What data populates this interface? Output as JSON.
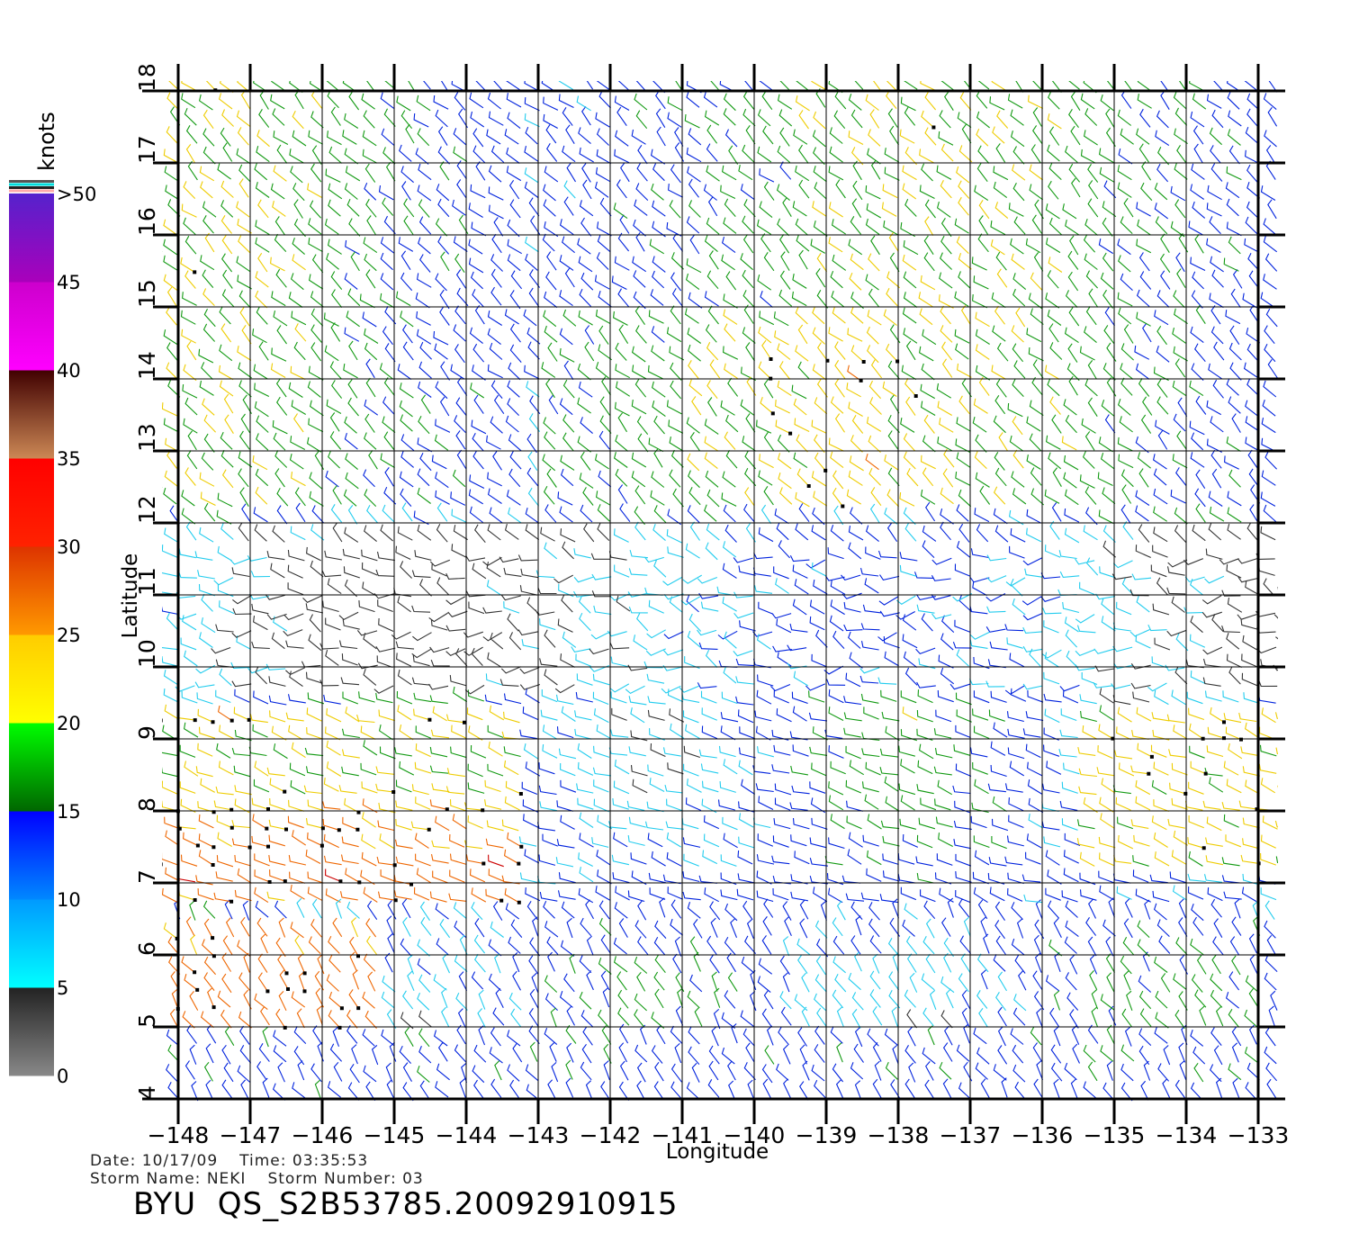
{
  "colorbar": {
    "unit": "knots",
    "labels": [
      "0",
      "5",
      "10",
      "15",
      "20",
      "25",
      "30",
      "35",
      "40",
      "45",
      ">50"
    ],
    "segments": [
      {
        "from": 0,
        "to": 5,
        "colors": [
          "#888888",
          "#222222"
        ]
      },
      {
        "from": 5,
        "to": 10,
        "colors": [
          "#00ffff",
          "#0099ff"
        ]
      },
      {
        "from": 10,
        "to": 15,
        "colors": [
          "#0088ff",
          "#0000ff"
        ]
      },
      {
        "from": 15,
        "to": 20,
        "colors": [
          "#006600",
          "#00ff00"
        ]
      },
      {
        "from": 20,
        "to": 25,
        "colors": [
          "#ffff00",
          "#ffcc00"
        ]
      },
      {
        "from": 25,
        "to": 30,
        "colors": [
          "#ff9900",
          "#dd3300"
        ]
      },
      {
        "from": 30,
        "to": 35,
        "colors": [
          "#ff2200",
          "#ff0000"
        ]
      },
      {
        "from": 35,
        "to": 40,
        "colors": [
          "#cc8855",
          "#400000"
        ]
      },
      {
        "from": 40,
        "to": 45,
        "colors": [
          "#ff00ff",
          "#cc00cc"
        ]
      },
      {
        "from": 45,
        "to": 50,
        "colors": [
          "#aa00bb",
          "#5522cc"
        ]
      }
    ],
    "top_stripe_colors": [
      "#555555",
      "#00dddd",
      "#222222",
      "#ffaaaa"
    ]
  },
  "map": {
    "xlabel": "Longitude",
    "ylabel": "Latitude",
    "lon_range": [
      -148,
      -133
    ],
    "lat_range": [
      4,
      18
    ],
    "lon_ticks": [
      "-148",
      "-147",
      "-146",
      "-145",
      "-144",
      "-143",
      "-142",
      "-141",
      "-140",
      "-139",
      "-138",
      "-137",
      "-136",
      "-135",
      "-134",
      "-133"
    ],
    "lat_ticks": [
      "4",
      "5",
      "6",
      "7",
      "8",
      "9",
      "10",
      "11",
      "12",
      "13",
      "14",
      "15",
      "16",
      "17",
      "18"
    ],
    "grid": true
  },
  "info": {
    "date_label": "Date:",
    "date": "10/17/09",
    "time_label": "Time:",
    "time": "03:35:53",
    "storm_name_label": "Storm Name:",
    "storm_name": "NEKI",
    "storm_number_label": "Storm Number:",
    "storm_number": "03"
  },
  "title": "BYU  QS_S2B53785.20092910915"
}
